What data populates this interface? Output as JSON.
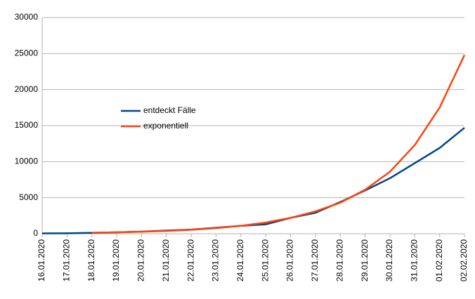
{
  "chart_data": {
    "type": "line",
    "categories": [
      "16.01.2020",
      "17.01.2020",
      "18.01.2020",
      "19.01.2020",
      "20.01.2020",
      "21.01.2020",
      "22.01.2020",
      "23.01.2020",
      "24.01.2020",
      "25.01.2020",
      "26.01.2020",
      "27.01.2020",
      "28.01.2020",
      "29.01.2020",
      "30.01.2020",
      "31.01.2020",
      "01.02.2020",
      "02.02.2020"
    ],
    "series": [
      {
        "name": "entdeckt Fälle",
        "color": "#004586",
        "values": [
          45,
          62,
          121,
          198,
          291,
          440,
          571,
          830,
          1100,
          1300,
          2200,
          2900,
          4400,
          6000,
          7700,
          9800,
          11900,
          14700
        ]
      },
      {
        "name": "exponentiell",
        "color": "#ff420e",
        "values": [
          null,
          null,
          140,
          200,
          280,
          390,
          550,
          780,
          1100,
          1550,
          2200,
          3100,
          4300,
          6100,
          8600,
          12300,
          17500,
          24800
        ]
      }
    ],
    "ylim": [
      0,
      30000
    ],
    "yticks": [
      0,
      5000,
      10000,
      15000,
      20000,
      25000,
      30000
    ],
    "grid": true
  }
}
